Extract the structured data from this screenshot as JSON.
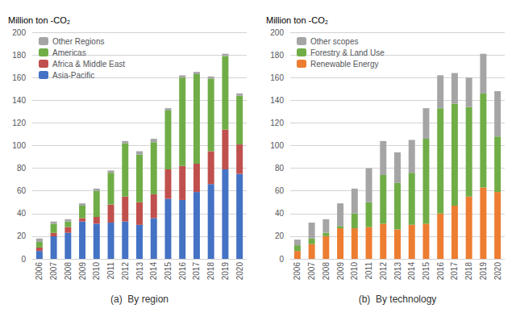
{
  "chart_data": [
    {
      "type": "bar",
      "stacked": true,
      "ylabel": "Million ton -CO₂",
      "xlabel": "(a)  By region",
      "categories": [
        "2006",
        "2007",
        "2008",
        "2009",
        "2010",
        "2011",
        "2012",
        "2013",
        "2014",
        "2015",
        "2016",
        "2017",
        "2018",
        "2019",
        "2020"
      ],
      "series": [
        {
          "name": "Asia-Pacific",
          "color": "#4472C4",
          "values": [
            7,
            20,
            23,
            33,
            31,
            32,
            33,
            30,
            36,
            53,
            52,
            59,
            66,
            79,
            75
          ]
        },
        {
          "name": "Africa & Middle East",
          "color": "#C0504D",
          "values": [
            3,
            3,
            5,
            3,
            6,
            16,
            22,
            20,
            21,
            26,
            30,
            25,
            29,
            35,
            26
          ]
        },
        {
          "name": "Americas",
          "color": "#70AD47",
          "values": [
            5,
            8,
            5,
            11,
            23,
            28,
            47,
            42,
            46,
            52,
            78,
            79,
            64,
            65,
            43
          ]
        },
        {
          "name": "Other Regions",
          "color": "#A5A5A5",
          "values": [
            3,
            2,
            2,
            2,
            2,
            2,
            2,
            3,
            3,
            2,
            2,
            2,
            2,
            2,
            2
          ]
        }
      ],
      "ylim": [
        0,
        200
      ],
      "yticks": [
        0,
        20,
        40,
        60,
        80,
        100,
        120,
        140,
        160,
        180,
        200
      ],
      "grid": true,
      "legend": "upper left"
    },
    {
      "type": "bar",
      "stacked": true,
      "ylabel": "Million ton -CO₂",
      "xlabel": "(b)  By technology",
      "categories": [
        "2006",
        "2007",
        "2008",
        "2009",
        "2010",
        "2011",
        "2012",
        "2013",
        "2014",
        "2015",
        "2016",
        "2017",
        "2018",
        "2019",
        "2020"
      ],
      "series": [
        {
          "name": "Renewable Energy",
          "color": "#ED7D31",
          "values": [
            7,
            13,
            20,
            27,
            27,
            28,
            31,
            26,
            30,
            31,
            40,
            47,
            55,
            63,
            59
          ]
        },
        {
          "name": "Forestry & Land Use",
          "color": "#70AD47",
          "values": [
            5,
            5,
            3,
            2,
            13,
            22,
            43,
            41,
            46,
            75,
            93,
            90,
            79,
            83,
            49
          ]
        },
        {
          "name": "Other scopes",
          "color": "#A5A5A5",
          "values": [
            5,
            14,
            12,
            20,
            22,
            30,
            30,
            27,
            29,
            27,
            29,
            27,
            26,
            35,
            40
          ]
        }
      ],
      "ylim": [
        0,
        200
      ],
      "yticks": [
        0,
        20,
        40,
        60,
        80,
        100,
        120,
        140,
        160,
        180,
        200
      ],
      "grid": true,
      "legend": "upper left"
    }
  ]
}
